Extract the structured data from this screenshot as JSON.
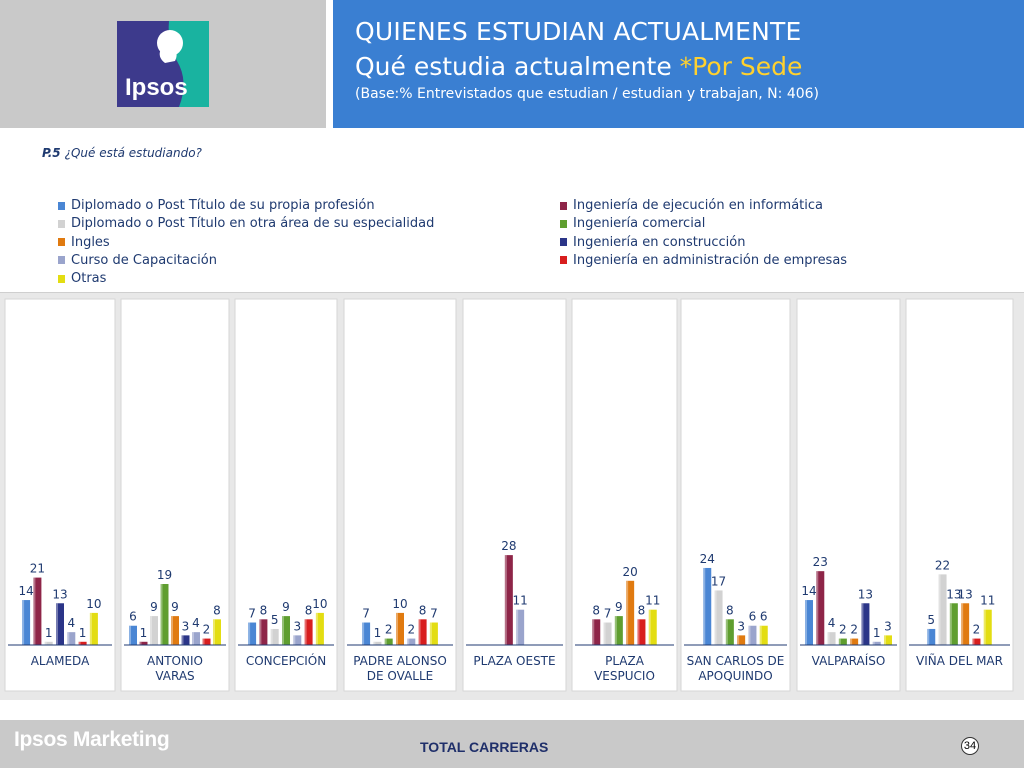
{
  "header": {
    "title_line1": "QUIENES ESTUDIAN ACTUALMENTE",
    "title_line2_main": "Qué estudia actualmente ",
    "title_line2_highlight": "*Por Sede",
    "subtitle": "(Base:% Entrevistados que  estudian / estudian y trabajan, N: 406)",
    "logo_text": "Ipsos"
  },
  "question": {
    "code": "P.5",
    "text": "¿Qué está estudiando?"
  },
  "footer": {
    "brand": "Ipsos Marketing",
    "text": "TOTAL CARRERAS",
    "page_number": "34"
  },
  "colors": {
    "header_blue": "#3a7fd2",
    "highlight_yellow": "#ffd12e",
    "gray_band": "#c9c9c9"
  },
  "chart_data": {
    "type": "bar",
    "categories": [
      "ALAMEDA",
      "ANTONIO VARAS",
      "CONCEPCIÓN",
      "PADRE ALONSO DE OVALLE",
      "PLAZA OESTE",
      "PLAZA VESPUCIO",
      "SAN CARLOS DE APOQUINDO",
      "VALPARAÍSO",
      "VIÑA DEL MAR"
    ],
    "category_lines": [
      [
        "ALAMEDA"
      ],
      [
        "ANTONIO",
        "VARAS"
      ],
      [
        "CONCEPCIÓN"
      ],
      [
        "PADRE ALONSO",
        "DE OVALLE"
      ],
      [
        "PLAZA OESTE"
      ],
      [
        "PLAZA",
        "VESPUCIO"
      ],
      [
        "SAN CARLOS DE",
        "APOQUINDO"
      ],
      [
        "VALPARAÍSO"
      ],
      [
        "VIÑA DEL MAR"
      ]
    ],
    "series": [
      {
        "name": "Diplomado o Post Título de su propia profesión",
        "color": "#4a86d4",
        "values": [
          14,
          6,
          7,
          7,
          null,
          null,
          24,
          14,
          5
        ]
      },
      {
        "name": "Ingeniería de ejecución en informática",
        "color": "#8e2548",
        "values": [
          21,
          1,
          8,
          null,
          28,
          8,
          null,
          23,
          null
        ]
      },
      {
        "name": "Diplomado o Post Título en otra área de su especialidad",
        "color": "#d2d2d2",
        "values": [
          1,
          9,
          5,
          1,
          null,
          7,
          17,
          4,
          22
        ]
      },
      {
        "name": "Ingeniería comercial",
        "color": "#5f9e2f",
        "values": [
          null,
          19,
          9,
          2,
          null,
          9,
          8,
          2,
          13
        ]
      },
      {
        "name": "Ingles",
        "color": "#e07a10",
        "values": [
          null,
          9,
          null,
          10,
          null,
          20,
          3,
          2,
          13
        ]
      },
      {
        "name": "Ingeniería en construcción",
        "color": "#2b3588",
        "values": [
          13,
          3,
          null,
          null,
          null,
          null,
          null,
          13,
          null
        ]
      },
      {
        "name": "Curso de Capacitación",
        "color": "#9aa4cc",
        "values": [
          4,
          4,
          3,
          2,
          11,
          null,
          6,
          1,
          null
        ]
      },
      {
        "name": "Ingeniería en administración de empresas",
        "color": "#d81e1e",
        "values": [
          1,
          2,
          8,
          8,
          null,
          8,
          null,
          null,
          2
        ]
      },
      {
        "name": "Otras",
        "color": "#e3dd12",
        "values": [
          10,
          8,
          10,
          7,
          null,
          11,
          6,
          3,
          11
        ]
      }
    ],
    "legend": {
      "placement": "top",
      "left": [
        "Diplomado o Post Título de su propia profesión",
        "Diplomado o Post Título en otra área de su especialidad",
        "Ingles",
        "Curso de Capacitación",
        "Otras"
      ],
      "right": [
        "Ingeniería de ejecución en informática",
        "Ingeniería comercial",
        "Ingeniería en construcción",
        "Ingeniería en administración de empresas"
      ]
    },
    "ylim": [
      0,
      30
    ],
    "grid": false
  }
}
